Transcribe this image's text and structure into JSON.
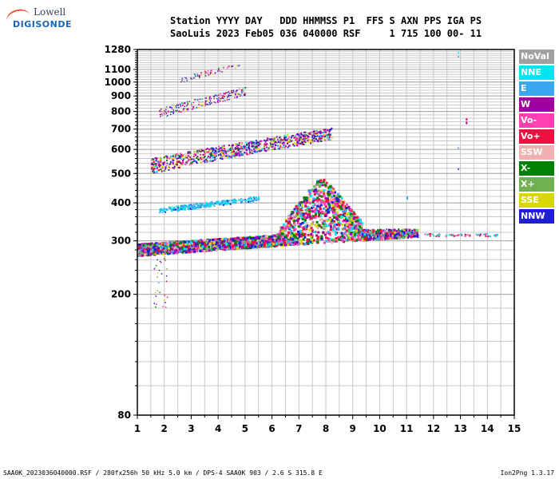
{
  "logo": {
    "line1": "Lowell",
    "line2": "DIGISONDE"
  },
  "header": {
    "labels": "Station YYYY DAY   DDD HHMMSS P1  FFS S AXN PPS IGA PS",
    "values": "SaoLuis 2023 Feb05 036 040000 RSF     1 715 100 00- 11"
  },
  "legend": [
    {
      "label": "NoVal",
      "color": "#a0a0a0"
    },
    {
      "label": "NNE",
      "color": "#00e5f0"
    },
    {
      "label": "E",
      "color": "#3aa8ee"
    },
    {
      "label": "W",
      "color": "#a000a0"
    },
    {
      "label": "Vo-",
      "color": "#ff40b0"
    },
    {
      "label": "Vo+",
      "color": "#ee1040"
    },
    {
      "label": "SSW",
      "color": "#f0b0b0"
    },
    {
      "label": "X-",
      "color": "#008000"
    },
    {
      "label": "X+",
      "color": "#70b050"
    },
    {
      "label": "SSE",
      "color": "#d8d800"
    },
    {
      "label": "NNW",
      "color": "#2020d0"
    }
  ],
  "footer": {
    "left": "SAA0K_2023036040000.RSF / 280fx256h 50 kHz 5.0 km / DPS-4 SAA0K 903 / 2.6 S 315.8 E",
    "right": "Ion2Png 1.3.17"
  },
  "chart_data": {
    "type": "scatter",
    "title": "",
    "xlabel": "",
    "ylabel": "",
    "xlim": [
      1,
      15
    ],
    "ylim": [
      80,
      1280
    ],
    "y_scale": "log",
    "x_ticks": [
      1,
      2,
      3,
      4,
      5,
      6,
      7,
      8,
      9,
      10,
      11,
      12,
      13,
      14,
      15
    ],
    "y_ticks": [
      80,
      200,
      300,
      400,
      500,
      600,
      700,
      800,
      900,
      1000,
      1100,
      1280
    ],
    "grid": true,
    "legend_position": "right",
    "clusters": [
      {
        "name": "F-trace",
        "x_range": [
          1.0,
          11.5
        ],
        "y_base": [
          270,
          310
        ],
        "peak": {
          "x": 7.8,
          "y": 470
        }
      },
      {
        "name": "Es-trace",
        "x_range": [
          1.8,
          5.5
        ],
        "y_range": [
          370,
          420
        ]
      },
      {
        "name": "2nd-hop",
        "x_range": [
          1.5,
          8.2
        ],
        "y_range": [
          510,
          760
        ]
      },
      {
        "name": "3rd-hop",
        "x_range": [
          1.8,
          5.5
        ],
        "y_range": [
          770,
          960
        ]
      },
      {
        "name": "4th-hop",
        "x_range": [
          2.6,
          4.8
        ],
        "y_range": [
          1020,
          1150
        ]
      }
    ]
  }
}
